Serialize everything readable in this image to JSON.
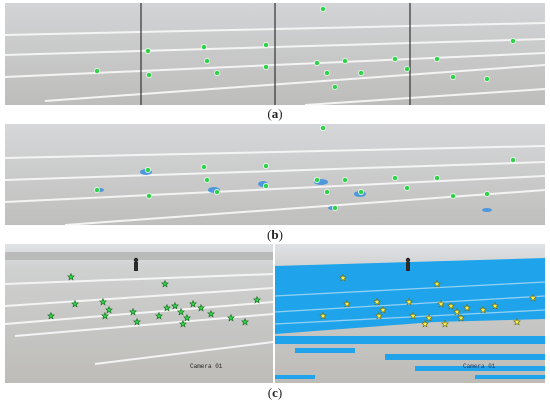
{
  "figure": {
    "captions": {
      "a": "a",
      "b": "b",
      "c": "c"
    },
    "camera_labels": {
      "left": "Camera 01",
      "right": "Camera 01"
    },
    "colors": {
      "ground": "#c8c8c6",
      "sky": "#d7dbe0",
      "lane": "#f4f4f4",
      "marker": "#2fd34a",
      "blue_overlay": "#1fa3ea"
    }
  }
}
